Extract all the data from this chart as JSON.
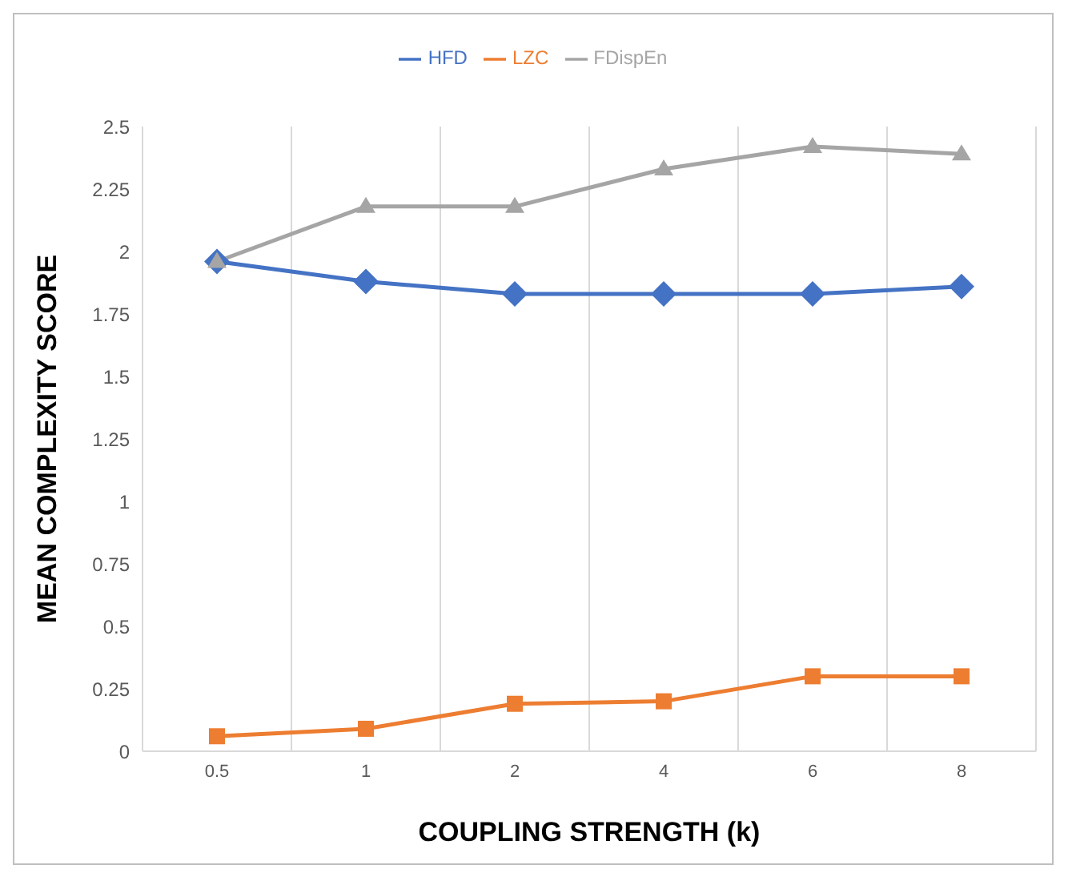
{
  "chart_data": {
    "type": "line",
    "xlabel": "COUPLING STRENGTH (k)",
    "ylabel": "MEAN COMPLEXITY SCORE",
    "categories": [
      "0.5",
      "1",
      "2",
      "4",
      "6",
      "8"
    ],
    "series": [
      {
        "name": "HFD",
        "color": "#4472c4",
        "marker": "diamond",
        "values": [
          1.96,
          1.88,
          1.83,
          1.83,
          1.83,
          1.86
        ]
      },
      {
        "name": "LZC",
        "color": "#ed7d31",
        "marker": "square",
        "values": [
          0.06,
          0.09,
          0.19,
          0.2,
          0.3,
          0.3
        ]
      },
      {
        "name": "FDispEn",
        "color": "#a5a5a5",
        "marker": "triangle",
        "values": [
          1.96,
          2.18,
          2.18,
          2.33,
          2.42,
          2.39
        ]
      }
    ],
    "ylim": [
      0,
      2.5
    ],
    "yticks": [
      0,
      0.25,
      0.5,
      0.75,
      1,
      1.25,
      1.5,
      1.75,
      2,
      2.25,
      2.5
    ],
    "grid": "x",
    "legend": "top",
    "line_style": "solid"
  }
}
